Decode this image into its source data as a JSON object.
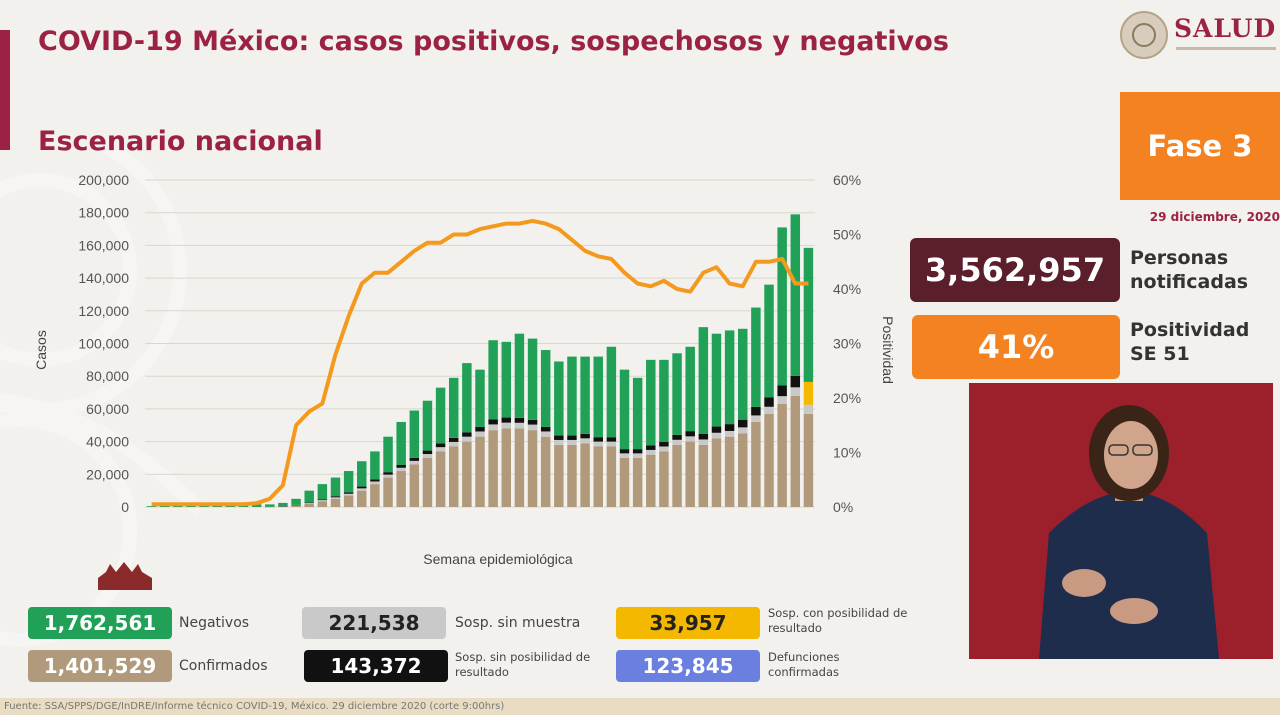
{
  "header": {
    "title": "COVID-19 México: casos positivos, sospechosos y negativos",
    "subtitle": "Escenario nacional",
    "logo_text": "SALUD"
  },
  "fase": "Fase 3",
  "fecha": "29 diciembre, 2020",
  "kpis": {
    "personas_value": "3,562,957",
    "personas_label_1": "Personas",
    "personas_label_2": "notificadas",
    "positividad_value": "41%",
    "positividad_label_1": "Positividad",
    "positividad_label_2": "SE 51"
  },
  "legend": {
    "negativos_value": "1,762,561",
    "negativos_label": "Negativos",
    "confirmados_value": "1,401,529",
    "confirmados_label": "Confirmados",
    "sosp_sin_muestra_value": "221,538",
    "sosp_sin_muestra_label": "Sosp. sin muestra",
    "sosp_sin_posibilidad_value": "143,372",
    "sosp_sin_posibilidad_label": "Sosp. sin posibilidad de resultado",
    "sosp_con_posibilidad_value": "33,957",
    "sosp_con_posibilidad_label": "Sosp. con posibilidad de resultado",
    "defunciones_value": "123,845",
    "defunciones_label": "Defunciones confirmadas"
  },
  "footer": "Fuente: SSA/SPPS/DGE/InDRE/Informe técnico COVID-19, México. 29 diciembre 2020 (corte 9:00hrs)",
  "colors": {
    "brand": "#9b2244",
    "negativos": "#20a157",
    "confirmados": "#b09a7b",
    "sosp_sin_muestra": "#c9c9c9",
    "sosp_sin_posibilidad": "#111111",
    "sosp_con_posibilidad": "#f5b800",
    "defunciones": "#6b7fe0",
    "positividad_line": "#f39a1e",
    "fase": "#f58220",
    "personas_box": "#5a1f2b"
  },
  "chart_data": {
    "type": "bar",
    "stacked": true,
    "xlabel": "Semana epidemiológica",
    "ylabel": "Casos",
    "y2label": "Positividad",
    "ylim": [
      0,
      200000
    ],
    "y2lim": [
      0,
      60
    ],
    "yticks": [
      "0",
      "20,000",
      "40,000",
      "60,000",
      "80,000",
      "100,000",
      "120,000",
      "140,000",
      "160,000",
      "180,000",
      "200,000"
    ],
    "y2ticks": [
      "0%",
      "10%",
      "20%",
      "30%",
      "40%",
      "50%",
      "60%"
    ],
    "grid": true,
    "weeks": 51,
    "series": [
      {
        "name": "Confirmados",
        "values": [
          0,
          0,
          0,
          0,
          0,
          0,
          0,
          0,
          0,
          100,
          300,
          900,
          2000,
          3500,
          5000,
          7000,
          10000,
          14000,
          18000,
          22000,
          26000,
          30000,
          34000,
          37000,
          40000,
          43000,
          47000,
          48000,
          48000,
          47000,
          43000,
          38000,
          38000,
          39000,
          37000,
          37000,
          30000,
          30000,
          32000,
          34000,
          38000,
          40000,
          38000,
          42000,
          43000,
          45000,
          52000,
          57000,
          63000,
          68000,
          57000
        ]
      },
      {
        "name": "Sosp. sin muestra",
        "values": [
          0,
          0,
          0,
          0,
          0,
          0,
          0,
          0,
          0,
          0,
          100,
          200,
          400,
          700,
          900,
          1100,
          1400,
          1600,
          1800,
          2000,
          2200,
          2400,
          2600,
          2800,
          3000,
          3200,
          3500,
          3600,
          3500,
          3400,
          3200,
          3000,
          3000,
          3000,
          3000,
          3000,
          2800,
          2800,
          2900,
          3000,
          3100,
          3200,
          3300,
          3400,
          3500,
          3700,
          4000,
          4300,
          4800,
          5200,
          5500
        ]
      },
      {
        "name": "Sosp. sin posibilidad de resultado",
        "values": [
          0,
          0,
          0,
          0,
          0,
          0,
          0,
          0,
          0,
          0,
          100,
          200,
          300,
          500,
          700,
          900,
          1100,
          1300,
          1500,
          1700,
          1900,
          2100,
          2300,
          2500,
          2700,
          2800,
          3000,
          3100,
          3000,
          2900,
          2800,
          2700,
          2700,
          2700,
          2700,
          2700,
          2600,
          2600,
          2700,
          2800,
          3000,
          3200,
          3500,
          3800,
          4200,
          4700,
          5200,
          5800,
          6500,
          7000,
          0
        ]
      },
      {
        "name": "Sosp. con posibilidad de resultado",
        "values": [
          0,
          0,
          0,
          0,
          0,
          0,
          0,
          0,
          0,
          0,
          0,
          0,
          0,
          0,
          0,
          0,
          0,
          0,
          0,
          0,
          0,
          0,
          0,
          0,
          0,
          0,
          0,
          0,
          0,
          0,
          0,
          0,
          0,
          0,
          0,
          0,
          0,
          0,
          0,
          0,
          0,
          0,
          0,
          0,
          0,
          0,
          0,
          0,
          0,
          0,
          14000
        ]
      },
      {
        "name": "Negativos",
        "values": [
          500,
          600,
          700,
          800,
          900,
          1000,
          1100,
          1300,
          1600,
          1500,
          2000,
          3700,
          7300,
          9300,
          11400,
          13000,
          15500,
          17100,
          21700,
          26300,
          28900,
          30500,
          34100,
          36700,
          42300,
          35000,
          48500,
          46300,
          51500,
          49700,
          47000,
          45300,
          48300,
          47300,
          49300,
          55300,
          48600,
          43600,
          52400,
          50200,
          49900,
          51600,
          65200,
          56800,
          57300,
          55600,
          60800,
          68900,
          96700,
          98800,
          82000
        ]
      }
    ],
    "positividad": [
      0.5,
      0.5,
      0.5,
      0.5,
      0.5,
      0.5,
      0.5,
      0.5,
      0.7,
      1.5,
      4,
      15,
      17.5,
      19,
      28,
      35,
      41,
      43,
      43,
      45,
      47,
      48.5,
      48.5,
      50,
      50,
      51,
      51.5,
      52,
      52,
      52.5,
      52,
      51,
      49,
      47,
      46,
      45.5,
      43,
      41,
      40.5,
      41.5,
      40,
      39.5,
      43,
      44,
      41,
      40.5,
      45,
      45,
      45.5,
      41,
      41
    ]
  }
}
